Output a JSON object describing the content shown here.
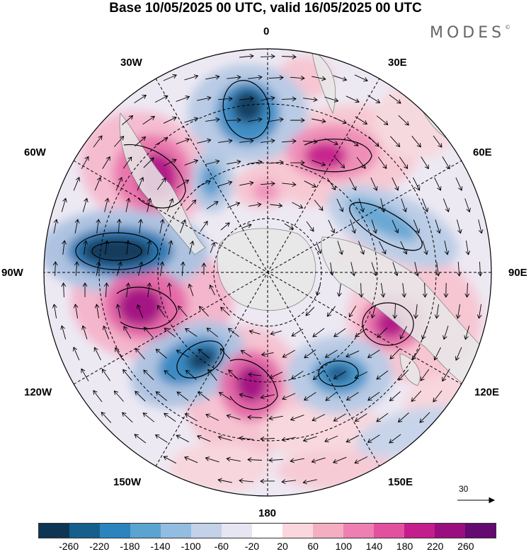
{
  "title": "Base 10/05/2025 00 UTC, valid 16/05/2025 00 UTC",
  "logo": "MODES",
  "logo_mark": "©",
  "longitude_labels": {
    "lon_0": "0",
    "lon_30e": "30E",
    "lon_60e": "60E",
    "lon_90e": "90E",
    "lon_120e": "120E",
    "lon_150e": "150E",
    "lon_180": "180",
    "lon_150w": "150W",
    "lon_120w": "120W",
    "lon_90w": "90W",
    "lon_60w": "60W",
    "lon_30w": "30W"
  },
  "reference_vector": {
    "label": "30"
  },
  "colorbar": {
    "colors": [
      "#0e3553",
      "#155f8c",
      "#2b84bd",
      "#5aa4d1",
      "#93bde0",
      "#c3d1e9",
      "#e6e5f2",
      "#ffffff",
      "#f9d7dc",
      "#f4aec1",
      "#ee7fb2",
      "#e2519f",
      "#c31e8b",
      "#9a0f7f",
      "#640a70"
    ],
    "tick_labels": [
      "-260",
      "-220",
      "-180",
      "-140",
      "-100",
      "-60",
      "-20",
      "20",
      "60",
      "100",
      "140",
      "180",
      "220",
      "260"
    ]
  },
  "colors": {
    "land": "#ececec",
    "graticule": "#000000"
  }
}
